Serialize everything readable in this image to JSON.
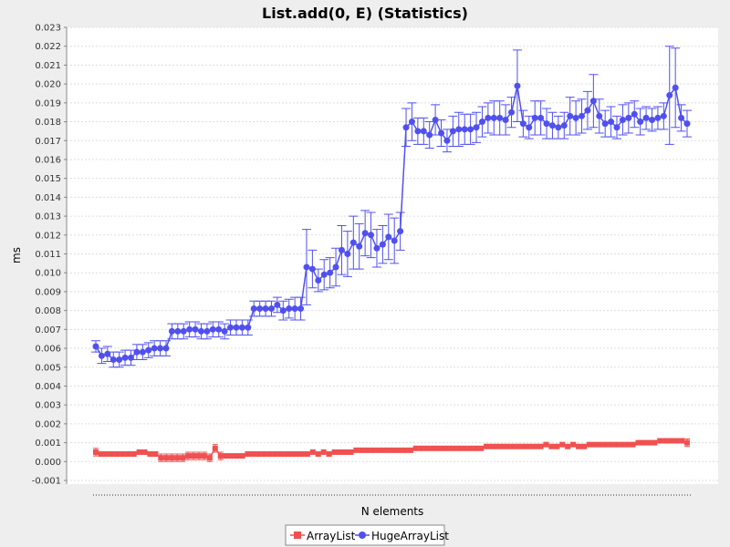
{
  "chart_data": {
    "type": "line",
    "title": "List.add(0, E) (Statistics)",
    "xlabel": "N elements",
    "ylabel": "ms",
    "ylim": [
      -0.001,
      0.023
    ],
    "yticks": [
      "-0.001",
      "0.000",
      "0.001",
      "0.002",
      "0.003",
      "0.004",
      "0.005",
      "0.006",
      "0.007",
      "0.008",
      "0.009",
      "0.010",
      "0.011",
      "0.012",
      "0.013",
      "0.014",
      "0.015",
      "0.016",
      "0.017",
      "0.018",
      "0.019",
      "0.020",
      "0.021",
      "0.022",
      "0.023"
    ],
    "grid": true,
    "legend": "bottom",
    "series": [
      {
        "name": "ArrayList",
        "color": "#f05050",
        "marker": "square",
        "values": [
          0.0005,
          0.0004,
          0.0004,
          0.0004,
          0.0004,
          0.0004,
          0.0004,
          0.0004,
          0.0005,
          0.0005,
          0.0004,
          0.0004,
          0.0002,
          0.0002,
          0.0002,
          0.0002,
          0.0002,
          0.0003,
          0.0003,
          0.0003,
          0.0003,
          0.0002,
          0.0007,
          0.0003,
          0.0003,
          0.0003,
          0.0003,
          0.0003,
          0.0004,
          0.0004,
          0.0004,
          0.0004,
          0.0004,
          0.0004,
          0.0004,
          0.0004,
          0.0004,
          0.0004,
          0.0004,
          0.0004,
          0.0005,
          0.0004,
          0.0005,
          0.0004,
          0.0005,
          0.0005,
          0.0005,
          0.0005,
          0.0006,
          0.0006,
          0.0006,
          0.0006,
          0.0006,
          0.0006,
          0.0006,
          0.0006,
          0.0006,
          0.0006,
          0.0006,
          0.0007,
          0.0007,
          0.0007,
          0.0007,
          0.0007,
          0.0007,
          0.0007,
          0.0007,
          0.0007,
          0.0007,
          0.0007,
          0.0007,
          0.0007,
          0.0008,
          0.0008,
          0.0008,
          0.0008,
          0.0008,
          0.0008,
          0.0008,
          0.0008,
          0.0008,
          0.0008,
          0.0008,
          0.0009,
          0.0008,
          0.0008,
          0.0009,
          0.0008,
          0.0009,
          0.0008,
          0.0008,
          0.0009,
          0.0009,
          0.0009,
          0.0009,
          0.0009,
          0.0009,
          0.0009,
          0.0009,
          0.0009,
          0.001,
          0.001,
          0.001,
          0.001,
          0.0011,
          0.0011,
          0.0011,
          0.0011,
          0.0011,
          0.001
        ],
        "err": [
          0.0002,
          0.0001,
          0.0001,
          0.0001,
          0.0001,
          0.0001,
          0.0001,
          0.0001,
          0.0001,
          0.0001,
          0.0001,
          0.0001,
          0.0002,
          0.0002,
          0.0002,
          0.0002,
          0.0002,
          0.0002,
          0.0002,
          0.0002,
          0.0002,
          0.0002,
          0.0002,
          0.0002,
          0.0001,
          0.0001,
          0.0001,
          0.0001,
          0.0001,
          0.0001,
          0.0001,
          0.0001,
          0.0001,
          0.0001,
          0.0001,
          0.0001,
          0.0001,
          0.0001,
          0.0001,
          0.0001,
          0.0001,
          0.0001,
          0.0001,
          0.0001,
          0.0001,
          0.0001,
          0.0001,
          0.0001,
          0.0001,
          0.0001,
          0.0001,
          0.0001,
          0.0001,
          0.0001,
          0.0001,
          0.0001,
          0.0001,
          0.0001,
          0.0001,
          0.0001,
          0.0001,
          0.0001,
          0.0001,
          0.0001,
          0.0001,
          0.0001,
          0.0001,
          0.0001,
          0.0001,
          0.0001,
          0.0001,
          0.0001,
          0.0001,
          0.0001,
          0.0001,
          0.0001,
          0.0001,
          0.0001,
          0.0001,
          0.0001,
          0.0001,
          0.0001,
          0.0001,
          0.0001,
          0.0001,
          0.0001,
          0.0001,
          0.0001,
          0.0001,
          0.0001,
          0.0001,
          0.0001,
          0.0001,
          0.0001,
          0.0001,
          0.0001,
          0.0001,
          0.0001,
          0.0001,
          0.0001,
          0.0001,
          0.0001,
          0.0001,
          0.0001,
          0.0001,
          0.0001,
          0.0001,
          0.0001,
          0.0001,
          0.0002
        ]
      },
      {
        "name": "HugeArrayList",
        "color": "#5050ee",
        "marker": "circle",
        "values": [
          0.0061,
          0.0056,
          0.0057,
          0.0054,
          0.0054,
          0.0055,
          0.0055,
          0.0058,
          0.0058,
          0.0059,
          0.006,
          0.006,
          0.006,
          0.0069,
          0.0069,
          0.0069,
          0.007,
          0.007,
          0.0069,
          0.0069,
          0.007,
          0.007,
          0.0069,
          0.0071,
          0.0071,
          0.0071,
          0.0071,
          0.0081,
          0.0081,
          0.0081,
          0.0081,
          0.0083,
          0.008,
          0.0081,
          0.0081,
          0.0081,
          0.0103,
          0.0102,
          0.0096,
          0.0099,
          0.01,
          0.0103,
          0.0112,
          0.011,
          0.0116,
          0.0114,
          0.0121,
          0.012,
          0.0113,
          0.0115,
          0.0119,
          0.0117,
          0.0122,
          0.0177,
          0.018,
          0.0175,
          0.0175,
          0.0173,
          0.0181,
          0.0174,
          0.017,
          0.0175,
          0.0176,
          0.0176,
          0.0176,
          0.0177,
          0.018,
          0.0182,
          0.0182,
          0.0182,
          0.0181,
          0.0185,
          0.0199,
          0.0179,
          0.0177,
          0.0182,
          0.0182,
          0.0179,
          0.0178,
          0.0177,
          0.0178,
          0.0183,
          0.0182,
          0.0183,
          0.0186,
          0.0191,
          0.0183,
          0.0179,
          0.018,
          0.0177,
          0.0181,
          0.0182,
          0.0184,
          0.018,
          0.0182,
          0.0181,
          0.0182,
          0.0183,
          0.0194,
          0.0198,
          0.0182,
          0.0179
        ],
        "err": [
          0.0003,
          0.0004,
          0.0004,
          0.0004,
          0.0004,
          0.0004,
          0.0004,
          0.0004,
          0.0004,
          0.0004,
          0.0004,
          0.0004,
          0.0004,
          0.0004,
          0.0004,
          0.0004,
          0.0004,
          0.0004,
          0.0004,
          0.0004,
          0.0004,
          0.0004,
          0.0004,
          0.0004,
          0.0004,
          0.0004,
          0.0004,
          0.0004,
          0.0004,
          0.0004,
          0.0004,
          0.0004,
          0.0005,
          0.0005,
          0.0006,
          0.0006,
          0.002,
          0.001,
          0.0006,
          0.0008,
          0.0008,
          0.001,
          0.0013,
          0.0012,
          0.0014,
          0.0012,
          0.0012,
          0.0012,
          0.001,
          0.001,
          0.0012,
          0.0012,
          0.001,
          0.001,
          0.001,
          0.0007,
          0.0007,
          0.0007,
          0.0008,
          0.0007,
          0.0006,
          0.0008,
          0.0009,
          0.0008,
          0.0008,
          0.0008,
          0.0008,
          0.0008,
          0.0009,
          0.0009,
          0.0008,
          0.0008,
          0.0019,
          0.0007,
          0.0006,
          0.0009,
          0.0009,
          0.0008,
          0.0007,
          0.0006,
          0.0007,
          0.001,
          0.0009,
          0.0009,
          0.001,
          0.0014,
          0.0009,
          0.0007,
          0.0008,
          0.0006,
          0.0008,
          0.0008,
          0.0007,
          0.0007,
          0.0006,
          0.0006,
          0.0006,
          0.0007,
          0.0026,
          0.0021,
          0.0007,
          0.0007
        ]
      }
    ]
  }
}
